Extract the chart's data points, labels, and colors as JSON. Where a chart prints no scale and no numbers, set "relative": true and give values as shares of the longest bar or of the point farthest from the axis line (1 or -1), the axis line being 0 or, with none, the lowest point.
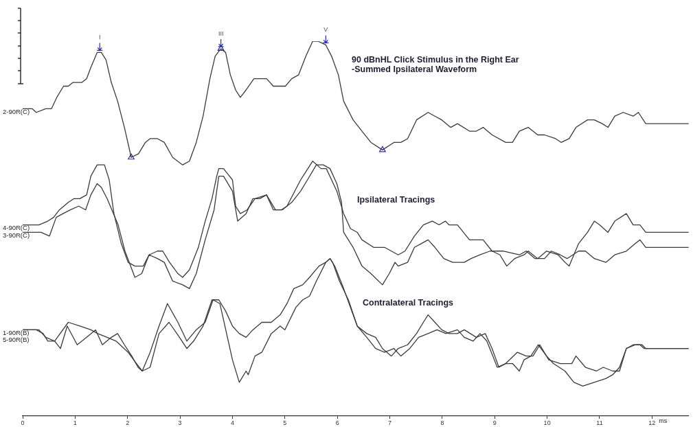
{
  "chart_data": {
    "type": "line",
    "relative": true,
    "xlabel": "ms",
    "xlim": [
      0,
      12.7
    ],
    "xticks": [
      0,
      1,
      2,
      3,
      4,
      5,
      6,
      7,
      8,
      9,
      10,
      11,
      12
    ],
    "legend": false,
    "series": [
      {
        "name": "2-90R(C)",
        "color": "#3a3a3a",
        "x": [
          0,
          0.18,
          0.26,
          0.44,
          0.55,
          0.65,
          0.78,
          0.87,
          0.96,
          1.07,
          1.13,
          1.22,
          1.3,
          1.42,
          1.5,
          1.59,
          1.69,
          1.81,
          1.94,
          2.07,
          2.21,
          2.34,
          2.43,
          2.57,
          2.7,
          2.86,
          3.05,
          3.18,
          3.31,
          3.44,
          3.57,
          3.67,
          3.78,
          3.87,
          3.96,
          4.06,
          4.15,
          4.26,
          4.41,
          4.52,
          4.65,
          4.78,
          4.91,
          5.01,
          5.13,
          5.26,
          5.4,
          5.53,
          5.63,
          5.78,
          5.89,
          6.02,
          6.12,
          6.3,
          6.47,
          6.64,
          6.86,
          7.08,
          7.21,
          7.34,
          7.51,
          7.73,
          7.86,
          7.99,
          8.16,
          8.29,
          8.52,
          8.65,
          8.78,
          8.95,
          9.21,
          9.34,
          9.47,
          9.64,
          9.82,
          9.95,
          10.16,
          10.27,
          10.42,
          10.55,
          10.77,
          10.9,
          11.05,
          11.16,
          11.29,
          11.45,
          11.64,
          11.74,
          11.88,
          12.7
        ],
        "values": [
          0.82,
          0.82,
          0.81,
          0.82,
          0.82,
          0.85,
          0.88,
          0.88,
          0.89,
          0.89,
          0.89,
          0.9,
          0.93,
          0.97,
          0.97,
          0.95,
          0.89,
          0.84,
          0.77,
          0.69,
          0.7,
          0.73,
          0.74,
          0.74,
          0.73,
          0.69,
          0.67,
          0.68,
          0.73,
          0.8,
          0.9,
          0.96,
          0.98,
          0.97,
          0.91,
          0.87,
          0.85,
          0.87,
          0.9,
          0.9,
          0.9,
          0.88,
          0.88,
          0.88,
          0.9,
          0.91,
          0.96,
          1,
          1,
          0.99,
          0.96,
          0.91,
          0.84,
          0.79,
          0.76,
          0.73,
          0.71,
          0.73,
          0.73,
          0.74,
          0.79,
          0.81,
          0.8,
          0.79,
          0.77,
          0.78,
          0.76,
          0.76,
          0.77,
          0.75,
          0.73,
          0.73,
          0.76,
          0.77,
          0.75,
          0.75,
          0.74,
          0.73,
          0.74,
          0.77,
          0.79,
          0.79,
          0.78,
          0.77,
          0.8,
          0.81,
          0.8,
          0.81,
          0.78,
          0.78
        ]
      },
      {
        "name": "4-90R(C)",
        "color": "#3a3a3a",
        "x": [
          0,
          0.31,
          0.48,
          0.59,
          0.7,
          0.87,
          0.98,
          1.09,
          1.22,
          1.3,
          1.42,
          1.56,
          1.65,
          1.74,
          1.88,
          2.01,
          2.14,
          2.3,
          2.41,
          2.57,
          2.67,
          2.8,
          2.96,
          3.05,
          3.18,
          3.35,
          3.48,
          3.61,
          3.7,
          3.74,
          3.83,
          4,
          4.06,
          4.15,
          4.28,
          4.43,
          4.65,
          4.78,
          4.93,
          5.04,
          5.3,
          5.53,
          5.69,
          5.79,
          5.99,
          6.12,
          6.25,
          6.38,
          6.47,
          6.69,
          6.9,
          7.03,
          7.16,
          7.29,
          7.47,
          7.64,
          7.81,
          7.94,
          8.06,
          8.13,
          8.29,
          8.52,
          8.78,
          8.95,
          9.1,
          9.23,
          9.38,
          9.56,
          9.64,
          9.82,
          9.99,
          10.21,
          10.34,
          10.42,
          10.6,
          10.77,
          10.9,
          11,
          11.16,
          11.29,
          11.51,
          11.64,
          11.77,
          11.88,
          12.7
        ],
        "values": [
          0.51,
          0.51,
          0.52,
          0.53,
          0.55,
          0.57,
          0.58,
          0.58,
          0.59,
          0.64,
          0.67,
          0.67,
          0.63,
          0.54,
          0.46,
          0.41,
          0.4,
          0.4,
          0.43,
          0.44,
          0.44,
          0.41,
          0.38,
          0.37,
          0.39,
          0.45,
          0.52,
          0.58,
          0.64,
          0.66,
          0.66,
          0.63,
          0.56,
          0.54,
          0.55,
          0.58,
          0.59,
          0.55,
          0.55,
          0.56,
          0.63,
          0.68,
          0.66,
          0.66,
          0.6,
          0.54,
          0.5,
          0.49,
          0.47,
          0.45,
          0.45,
          0.44,
          0.43,
          0.44,
          0.48,
          0.51,
          0.52,
          0.51,
          0.52,
          0.51,
          0.51,
          0.47,
          0.47,
          0.44,
          0.43,
          0.4,
          0.42,
          0.43,
          0.44,
          0.42,
          0.44,
          0.43,
          0.41,
          0.4,
          0.46,
          0.49,
          0.52,
          0.51,
          0.49,
          0.52,
          0.54,
          0.51,
          0.51,
          0.49,
          0.49
        ]
      },
      {
        "name": "3-90R(C)",
        "color": "#3a3a3a",
        "x": [
          0,
          0.35,
          0.51,
          0.64,
          0.77,
          0.91,
          1.07,
          1.2,
          1.3,
          1.42,
          1.5,
          1.61,
          1.82,
          1.95,
          2.14,
          2.27,
          2.41,
          2.57,
          2.7,
          2.86,
          3.05,
          3.18,
          3.31,
          3.48,
          3.65,
          3.74,
          3.83,
          4,
          4.1,
          4.26,
          4.39,
          4.52,
          4.65,
          4.82,
          4.95,
          5.13,
          5.3,
          5.43,
          5.6,
          5.73,
          5.86,
          5.99,
          6.08,
          6.12,
          6.3,
          6.47,
          6.64,
          6.86,
          6.99,
          7.1,
          7.16,
          7.34,
          7.47,
          7.6,
          7.73,
          7.86,
          8.03,
          8.2,
          8.42,
          8.55,
          8.72,
          8.91,
          9.17,
          9.47,
          9.6,
          9.77,
          9.95,
          10.08,
          10.25,
          10.38,
          10.6,
          10.73,
          10.9,
          11.12,
          11.29,
          11.51,
          11.68,
          11.77,
          11.88,
          12.7
        ],
        "values": [
          0.49,
          0.49,
          0.48,
          0.53,
          0.54,
          0.55,
          0.56,
          0.55,
          0.59,
          0.62,
          0.61,
          0.58,
          0.51,
          0.44,
          0.37,
          0.38,
          0.43,
          0.42,
          0.41,
          0.36,
          0.35,
          0.34,
          0.38,
          0.47,
          0.55,
          0.64,
          0.64,
          0.6,
          0.52,
          0.54,
          0.58,
          0.58,
          0.59,
          0.55,
          0.55,
          0.57,
          0.6,
          0.63,
          0.67,
          0.67,
          0.66,
          0.62,
          0.57,
          0.49,
          0.45,
          0.4,
          0.38,
          0.35,
          0.38,
          0.41,
          0.4,
          0.41,
          0.45,
          0.46,
          0.47,
          0.45,
          0.42,
          0.41,
          0.41,
          0.42,
          0.43,
          0.44,
          0.44,
          0.43,
          0.44,
          0.42,
          0.42,
          0.44,
          0.43,
          0.42,
          0.44,
          0.44,
          0.42,
          0.41,
          0.43,
          0.44,
          0.46,
          0.47,
          0.45,
          0.45
        ]
      },
      {
        "name": "1-90R(B)",
        "color": "#3a3a3a",
        "x": [
          0,
          0.26,
          0.39,
          0.48,
          0.61,
          0.72,
          0.85,
          1.04,
          1.22,
          1.39,
          1.52,
          1.69,
          1.81,
          1.94,
          2.08,
          2.2,
          2.28,
          2.43,
          2.6,
          2.79,
          2.99,
          3.13,
          3.26,
          3.44,
          3.61,
          3.74,
          3.87,
          4,
          4.13,
          4.26,
          4.39,
          4.56,
          4.74,
          4.91,
          5.04,
          5.17,
          5.34,
          5.47,
          5.65,
          5.78,
          5.86,
          5.91,
          6.04,
          6.21,
          6.38,
          6.56,
          6.73,
          6.86,
          7.03,
          7.16,
          7.34,
          7.51,
          7.64,
          7.73,
          7.86,
          7.99,
          8.13,
          8.29,
          8.42,
          8.65,
          8.82,
          8.95,
          9.08,
          9.21,
          9.43,
          9.6,
          9.73,
          9.86,
          10.03,
          10.25,
          10.47,
          10.55,
          10.73,
          10.94,
          11.07,
          11.25,
          11.38,
          11.51,
          11.68,
          11.81,
          11.88,
          12.7
        ],
        "values": [
          0.23,
          0.23,
          0.22,
          0.2,
          0.2,
          0.18,
          0.24,
          0.19,
          0.21,
          0.23,
          0.19,
          0.21,
          0.22,
          0.19,
          0.16,
          0.13,
          0.12,
          0.13,
          0.22,
          0.25,
          0.21,
          0.18,
          0.2,
          0.24,
          0.31,
          0.31,
          0.28,
          0.24,
          0.22,
          0.21,
          0.23,
          0.25,
          0.25,
          0.27,
          0.3,
          0.34,
          0.35,
          0.37,
          0.4,
          0.41,
          0.42,
          0.41,
          0.36,
          0.31,
          0.24,
          0.22,
          0.21,
          0.18,
          0.16,
          0.18,
          0.19,
          0.22,
          0.25,
          0.27,
          0.25,
          0.23,
          0.22,
          0.22,
          0.23,
          0.21,
          0.22,
          0.18,
          0.13,
          0.14,
          0.17,
          0.16,
          0.16,
          0.19,
          0.15,
          0.14,
          0.14,
          0.16,
          0.13,
          0.12,
          0.13,
          0.12,
          0.12,
          0.18,
          0.19,
          0.19,
          0.18,
          0.18
        ]
      },
      {
        "name": "5-90R(B)",
        "color": "#3a3a3a",
        "x": [
          0,
          0.31,
          0.44,
          0.61,
          0.87,
          1.09,
          1.3,
          1.43,
          1.61,
          1.78,
          2.01,
          2.17,
          2.28,
          2.43,
          2.6,
          2.76,
          2.96,
          3.13,
          3.31,
          3.48,
          3.63,
          3.76,
          4,
          4.13,
          4.26,
          4.3,
          4.43,
          4.56,
          4.74,
          4.91,
          5,
          5.21,
          5.34,
          5.47,
          5.6,
          5.78,
          5.86,
          5.95,
          6.12,
          6.25,
          6.38,
          6.56,
          6.73,
          6.9,
          7.08,
          7.21,
          7.38,
          7.55,
          7.73,
          7.9,
          8.07,
          8.29,
          8.42,
          8.59,
          8.72,
          8.85,
          9.05,
          9.21,
          9.34,
          9.47,
          9.56,
          9.69,
          9.83,
          9.99,
          10.12,
          10.34,
          10.51,
          10.68,
          10.9,
          11.12,
          11.25,
          11.38,
          11.51,
          11.64,
          11.77,
          11.85,
          12.7
        ],
        "values": [
          0.23,
          0.23,
          0.21,
          0.2,
          0.25,
          0.24,
          0.23,
          0.22,
          0.21,
          0.2,
          0.17,
          0.14,
          0.12,
          0.17,
          0.24,
          0.3,
          0.25,
          0.2,
          0.23,
          0.25,
          0.31,
          0.3,
          0.15,
          0.09,
          0.12,
          0.11,
          0.16,
          0.17,
          0.22,
          0.24,
          0.23,
          0.29,
          0.31,
          0.32,
          0.36,
          0.41,
          0.42,
          0.4,
          0.34,
          0.29,
          0.24,
          0.21,
          0.18,
          0.17,
          0.18,
          0.16,
          0.18,
          0.21,
          0.22,
          0.23,
          0.22,
          0.23,
          0.21,
          0.2,
          0.22,
          0.2,
          0.13,
          0.14,
          0.14,
          0.12,
          0.15,
          0.16,
          0.19,
          0.16,
          0.14,
          0.12,
          0.09,
          0.08,
          0.09,
          0.1,
          0.11,
          0.13,
          0.18,
          0.19,
          0.19,
          0.18,
          0.18
        ]
      },
      {
        "type": "scatter",
        "marker": "triangle",
        "color": "#2c2c9c",
        "x": [
          2.07,
          3.78,
          6.86
        ],
        "values": [
          0.69,
          0.98,
          0.71
        ]
      }
    ],
    "annotations": [
      {
        "text": "I",
        "x": 1.47,
        "y": 0.97
      },
      {
        "text": "III",
        "x": 3.78,
        "y": 0.98
      },
      {
        "text": "V",
        "x": 5.78,
        "y": 0.99
      },
      "90 dBnHL Click Stimulus in the Right Ear\n-Summed Ipsilateral Waveform",
      "Ipsilateral Tracings",
      "Contralateral Tracings"
    ]
  }
}
